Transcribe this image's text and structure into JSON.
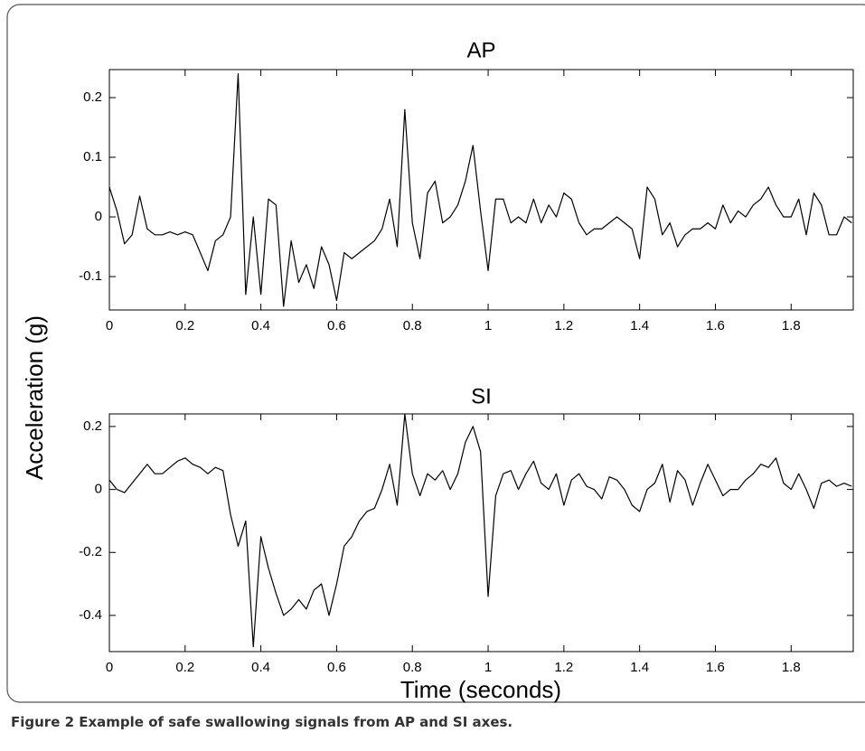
{
  "chart_data": [
    {
      "type": "line",
      "title": "AP",
      "color": "#000000",
      "x": [
        0,
        0.02,
        0.04,
        0.06,
        0.08,
        0.1,
        0.12,
        0.14,
        0.16,
        0.18,
        0.2,
        0.22,
        0.24,
        0.26,
        0.28,
        0.3,
        0.32,
        0.34,
        0.36,
        0.38,
        0.4,
        0.42,
        0.44,
        0.46,
        0.48,
        0.5,
        0.52,
        0.54,
        0.56,
        0.58,
        0.6,
        0.62,
        0.64,
        0.66,
        0.68,
        0.7,
        0.72,
        0.74,
        0.76,
        0.78,
        0.8,
        0.82,
        0.84,
        0.86,
        0.88,
        0.9,
        0.92,
        0.94,
        0.96,
        0.98,
        1,
        1.02,
        1.04,
        1.06,
        1.08,
        1.1,
        1.12,
        1.14,
        1.16,
        1.18,
        1.2,
        1.22,
        1.24,
        1.26,
        1.28,
        1.3,
        1.32,
        1.34,
        1.36,
        1.38,
        1.4,
        1.42,
        1.44,
        1.46,
        1.48,
        1.5,
        1.52,
        1.54,
        1.56,
        1.58,
        1.6,
        1.62,
        1.64,
        1.66,
        1.68,
        1.7,
        1.72,
        1.74,
        1.76,
        1.78,
        1.8,
        1.82,
        1.84,
        1.86,
        1.88,
        1.9,
        1.92,
        1.94,
        1.96
      ],
      "values": [
        0.05,
        0.01,
        -0.045,
        -0.03,
        0.035,
        -0.02,
        -0.03,
        -0.03,
        -0.025,
        -0.03,
        -0.025,
        -0.03,
        -0.06,
        -0.09,
        -0.04,
        -0.03,
        0,
        0.24,
        -0.13,
        0,
        -0.13,
        0.03,
        0.02,
        -0.15,
        -0.04,
        -0.11,
        -0.08,
        -0.12,
        -0.05,
        -0.08,
        -0.14,
        -0.06,
        -0.07,
        -0.06,
        -0.05,
        -0.04,
        -0.02,
        0.03,
        -0.05,
        0.18,
        -0.01,
        -0.07,
        0.04,
        0.06,
        -0.01,
        0,
        0.02,
        0.06,
        0.12,
        0.01,
        -0.09,
        0.03,
        0.03,
        -0.01,
        0,
        -0.01,
        0.03,
        -0.01,
        0.02,
        0,
        0.04,
        0.03,
        -0.01,
        -0.03,
        -0.02,
        -0.02,
        -0.01,
        0,
        -0.01,
        -0.02,
        -0.07,
        0.05,
        0.03,
        -0.03,
        -0.01,
        -0.05,
        -0.03,
        -0.02,
        -0.02,
        -0.01,
        -0.02,
        0.02,
        -0.01,
        0.01,
        0,
        0.02,
        0.03,
        0.05,
        0.02,
        0,
        0,
        0.03,
        -0.03,
        0.04,
        0.02,
        -0.03,
        -0.03,
        0,
        -0.01
      ],
      "xlim": [
        0,
        1.964
      ],
      "ylim": [
        -0.156,
        0.247
      ],
      "xticks": [
        0,
        0.2,
        0.4,
        0.6,
        0.8,
        1,
        1.2,
        1.4,
        1.6,
        1.8
      ],
      "yticks": [
        -0.1,
        0,
        0.1,
        0.2
      ]
    },
    {
      "type": "line",
      "title": "SI",
      "color": "#000000",
      "x": [
        0,
        0.02,
        0.04,
        0.06,
        0.08,
        0.1,
        0.12,
        0.14,
        0.16,
        0.18,
        0.2,
        0.22,
        0.24,
        0.26,
        0.28,
        0.3,
        0.32,
        0.34,
        0.36,
        0.38,
        0.4,
        0.42,
        0.44,
        0.46,
        0.48,
        0.5,
        0.52,
        0.54,
        0.56,
        0.58,
        0.6,
        0.62,
        0.64,
        0.66,
        0.68,
        0.7,
        0.72,
        0.74,
        0.76,
        0.78,
        0.8,
        0.82,
        0.84,
        0.86,
        0.88,
        0.9,
        0.92,
        0.94,
        0.96,
        0.98,
        1,
        1.02,
        1.04,
        1.06,
        1.08,
        1.1,
        1.12,
        1.14,
        1.16,
        1.18,
        1.2,
        1.22,
        1.24,
        1.26,
        1.28,
        1.3,
        1.32,
        1.34,
        1.36,
        1.38,
        1.4,
        1.42,
        1.44,
        1.46,
        1.48,
        1.5,
        1.52,
        1.54,
        1.56,
        1.58,
        1.6,
        1.62,
        1.64,
        1.66,
        1.68,
        1.7,
        1.72,
        1.74,
        1.76,
        1.78,
        1.8,
        1.82,
        1.84,
        1.86,
        1.88,
        1.9,
        1.92,
        1.94,
        1.96
      ],
      "values": [
        0.03,
        0,
        -0.01,
        0.02,
        0.05,
        0.08,
        0.05,
        0.05,
        0.07,
        0.09,
        0.1,
        0.08,
        0.07,
        0.05,
        0.07,
        0.06,
        -0.08,
        -0.18,
        -0.1,
        -0.5,
        -0.15,
        -0.25,
        -0.33,
        -0.4,
        -0.38,
        -0.35,
        -0.38,
        -0.32,
        -0.3,
        -0.4,
        -0.3,
        -0.18,
        -0.15,
        -0.1,
        -0.07,
        -0.06,
        0,
        0.08,
        -0.05,
        0.24,
        0.05,
        -0.02,
        0.05,
        0.03,
        0.06,
        0,
        0.05,
        0.15,
        0.2,
        0.12,
        -0.34,
        -0.02,
        0.05,
        0.06,
        0,
        0.05,
        0.09,
        0.02,
        0,
        0.05,
        -0.05,
        0.03,
        0.05,
        0.01,
        0,
        -0.03,
        0.04,
        0.03,
        0,
        -0.05,
        -0.07,
        0,
        0.02,
        0.08,
        -0.04,
        0.06,
        0.03,
        -0.05,
        0.02,
        0.08,
        0.03,
        -0.02,
        0,
        0,
        0.03,
        0.05,
        0.08,
        0.07,
        0.1,
        0.02,
        0,
        0.05,
        0,
        -0.06,
        0.02,
        0.03,
        0.01,
        0.02,
        0.01
      ],
      "xlim": [
        0,
        1.964
      ],
      "ylim": [
        -0.515,
        0.24
      ],
      "xticks": [
        0,
        0.2,
        0.4,
        0.6,
        0.8,
        1,
        1.2,
        1.4,
        1.6,
        1.8
      ],
      "yticks": [
        -0.4,
        -0.2,
        0,
        0.2
      ]
    }
  ],
  "shared_axes": {
    "ylabel": "Acceleration (g)",
    "xlabel": "Time (seconds)"
  },
  "caption": "Figure 2 Example of safe swallowing signals from AP and SI axes."
}
